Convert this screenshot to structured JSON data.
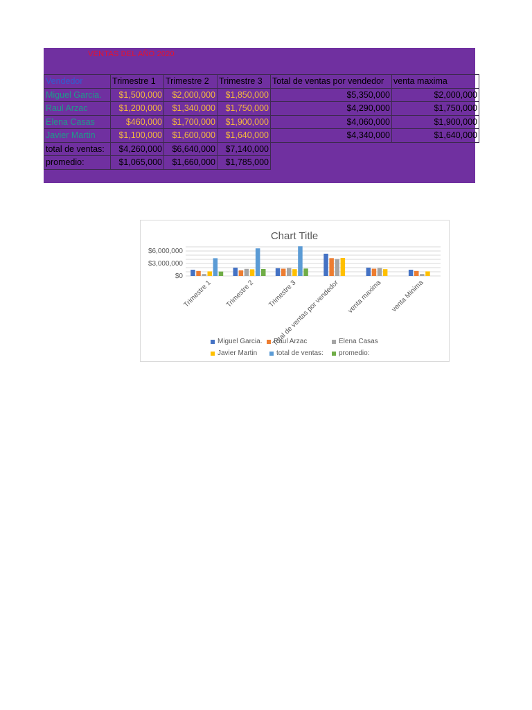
{
  "sheet": {
    "title": "VENTAS DEL AÑO 2020",
    "header": [
      "Vendedor",
      "Trimestre 1",
      "Trimestre 2",
      "Trimestre 3",
      "Total de ventas por vendedor",
      "venta maxima"
    ],
    "rows": [
      [
        "Miguel Garcia.",
        "$1,500,000",
        "$2,000,000",
        "$1,850,000",
        "$5,350,000",
        "$2,000,000"
      ],
      [
        "Raul Arzac",
        "$1,200,000",
        "$1,340,000",
        "$1,750,000",
        "$4,290,000",
        "$1,750,000"
      ],
      [
        "Elena Casas",
        "$460,000",
        "$1,700,000",
        "$1,900,000",
        "$4,060,000",
        "$1,900,000"
      ],
      [
        "Javier Martin",
        "$1,100,000",
        "$1,600,000",
        "$1,640,000",
        "$4,340,000",
        "$1,640,000"
      ]
    ],
    "totals": [
      "total de ventas:",
      "$4,260,000",
      "$6,640,000",
      "$7,140,000"
    ],
    "averages": [
      "promedio:",
      "$1,065,000",
      "$1,660,000",
      "$1,785,000"
    ],
    "colors": {
      "background": "#7030a0",
      "title": "#e8112d",
      "header_label": "#2f5fcf",
      "names": "#1f9a8a",
      "values": "#f6b93b"
    }
  },
  "chart_data": {
    "type": "bar",
    "title": "Chart Title",
    "categories": [
      "Trimestre 1",
      "Trimestre 2",
      "Trimestre 3",
      "Total de ventas por vendedor",
      "venta maxima",
      "venta Minima"
    ],
    "y_ticks": [
      "$6,000,000",
      "$3,000,000",
      "$0"
    ],
    "ylim": [
      0,
      7000000
    ],
    "grid": true,
    "legend_position": "bottom",
    "series": [
      {
        "name": "Miguel Garcia.",
        "color": "#4472c4",
        "values": [
          1500000,
          2000000,
          1850000,
          5350000,
          2000000,
          1500000
        ]
      },
      {
        "name": "Raul Arzac",
        "color": "#ed7d31",
        "values": [
          1200000,
          1340000,
          1750000,
          4290000,
          1750000,
          1200000
        ]
      },
      {
        "name": "Elena Casas",
        "color": "#a5a5a5",
        "values": [
          460000,
          1700000,
          1900000,
          4060000,
          1900000,
          460000
        ]
      },
      {
        "name": "Javier Martin",
        "color": "#ffc000",
        "values": [
          1100000,
          1600000,
          1640000,
          4340000,
          1640000,
          1100000
        ]
      },
      {
        "name": "total de ventas:",
        "color": "#5b9bd5",
        "values": [
          4260000,
          6640000,
          7140000,
          0,
          0,
          0
        ]
      },
      {
        "name": "promedio:",
        "color": "#70ad47",
        "values": [
          1065000,
          1660000,
          1785000,
          0,
          0,
          0
        ]
      }
    ]
  }
}
